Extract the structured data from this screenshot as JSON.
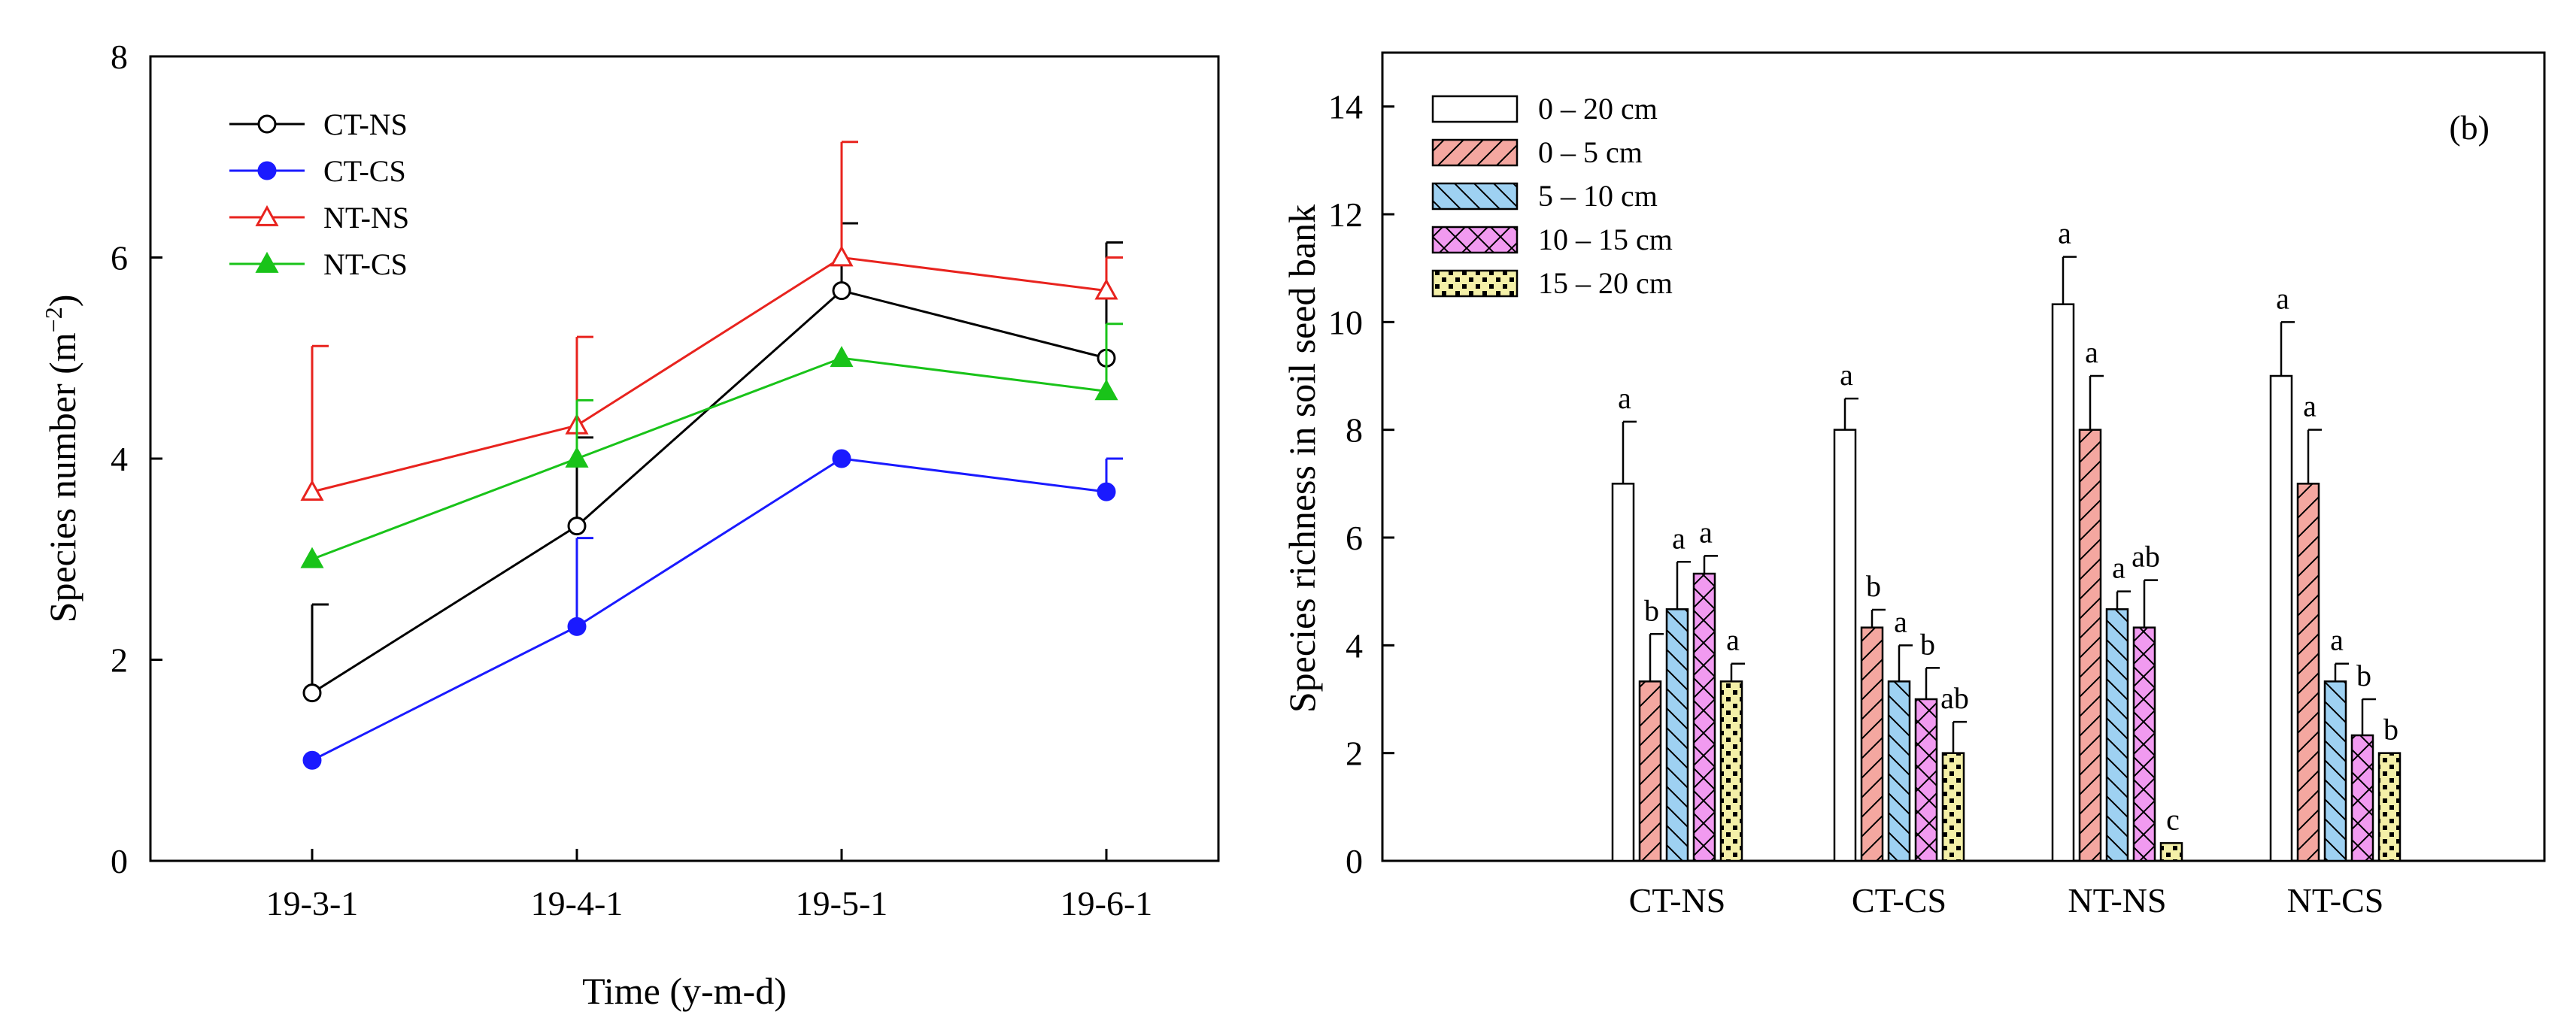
{
  "colors": {
    "CT-NS": "#000000",
    "CT-CS": "#1a1aff",
    "NT-NS": "#e8231e",
    "NT-CS": "#19c319",
    "depth_0_20": "#ffffff",
    "depth_0_5": "#f4a7a0",
    "depth_5_10": "#9ed1f2",
    "depth_10_15": "#f19af0",
    "depth_15_20": "#f4f0a8"
  },
  "chart_data": [
    {
      "type": "line",
      "title": "",
      "xlabel": "Time (y-m-d)",
      "ylabel_main": "Species number (m",
      "ylabel_sup": "−2",
      "ylabel_end": ")",
      "x": [
        "19-3-1",
        "19-4-1",
        "19-5-1",
        "19-6-1"
      ],
      "ylim": [
        0,
        8
      ],
      "yticks": [
        "0",
        "2",
        "4",
        "6",
        "8"
      ],
      "legend_position": "top-left",
      "series": [
        {
          "name": "CT-NS",
          "values": [
            1.67,
            3.33,
            5.67,
            5.0
          ],
          "err": [
            0.88,
            0.88,
            0.67,
            1.15
          ],
          "marker": "circle-open",
          "color": "#000000"
        },
        {
          "name": "CT-CS",
          "values": [
            1.0,
            2.33,
            4.0,
            3.67
          ],
          "err": [
            0,
            0.88,
            0,
            0.33
          ],
          "marker": "circle-filled",
          "color": "#1a1aff"
        },
        {
          "name": "NT-NS",
          "values": [
            3.67,
            4.33,
            6.0,
            5.67
          ],
          "err": [
            1.45,
            0.88,
            1.15,
            0.33
          ],
          "marker": "triangle-open",
          "color": "#e8231e"
        },
        {
          "name": "NT-CS",
          "values": [
            3.0,
            4.0,
            5.0,
            4.67
          ],
          "err": [
            0,
            0.58,
            0,
            0.67
          ],
          "marker": "triangle-filled",
          "color": "#19c319"
        }
      ]
    },
    {
      "type": "bar",
      "panel_label": "(b)",
      "title": "",
      "xlabel": "",
      "ylabel": "Species richness in soil seed bank",
      "categories": [
        "CT-NS",
        "CT-CS",
        "NT-NS",
        "NT-CS"
      ],
      "ylim": [
        0,
        15
      ],
      "yticks": [
        "0",
        "2",
        "4",
        "6",
        "8",
        "10",
        "12",
        "14"
      ],
      "legend_position": "top-left",
      "series": [
        {
          "name": "0 – 20 cm",
          "values": [
            7.0,
            8.0,
            10.33,
            9.0
          ],
          "err": [
            1.15,
            0.58,
            0.88,
            1.0
          ],
          "letters": [
            "a",
            "a",
            "a",
            "a"
          ],
          "color": "#ffffff",
          "pattern": "none"
        },
        {
          "name": "0 – 5 cm",
          "values": [
            3.33,
            4.33,
            8.0,
            7.0
          ],
          "err": [
            0.88,
            0.33,
            1.0,
            1.0
          ],
          "letters": [
            "b",
            "b",
            "a",
            "a"
          ],
          "color": "#f4a7a0",
          "pattern": "diag-right"
        },
        {
          "name": "5 – 10 cm",
          "values": [
            4.67,
            3.33,
            4.67,
            3.33
          ],
          "err": [
            0.88,
            0.67,
            0.33,
            0.33
          ],
          "letters": [
            "a",
            "a",
            "a",
            "a"
          ],
          "color": "#9ed1f2",
          "pattern": "diag-left"
        },
        {
          "name": "10 – 15 cm",
          "values": [
            5.33,
            3.0,
            4.33,
            2.33
          ],
          "err": [
            0.33,
            0.58,
            0.88,
            0.67
          ],
          "letters": [
            "a",
            "b",
            "ab",
            "b"
          ],
          "color": "#f19af0",
          "pattern": "cross"
        },
        {
          "name": "15 – 20 cm",
          "values": [
            3.33,
            2.0,
            0.33,
            2.0
          ],
          "err": [
            0.33,
            0.58,
            0.0,
            0.0
          ],
          "letters": [
            "a",
            "ab",
            "c",
            "b"
          ],
          "color": "#f4f0a8",
          "pattern": "checker"
        }
      ]
    }
  ]
}
